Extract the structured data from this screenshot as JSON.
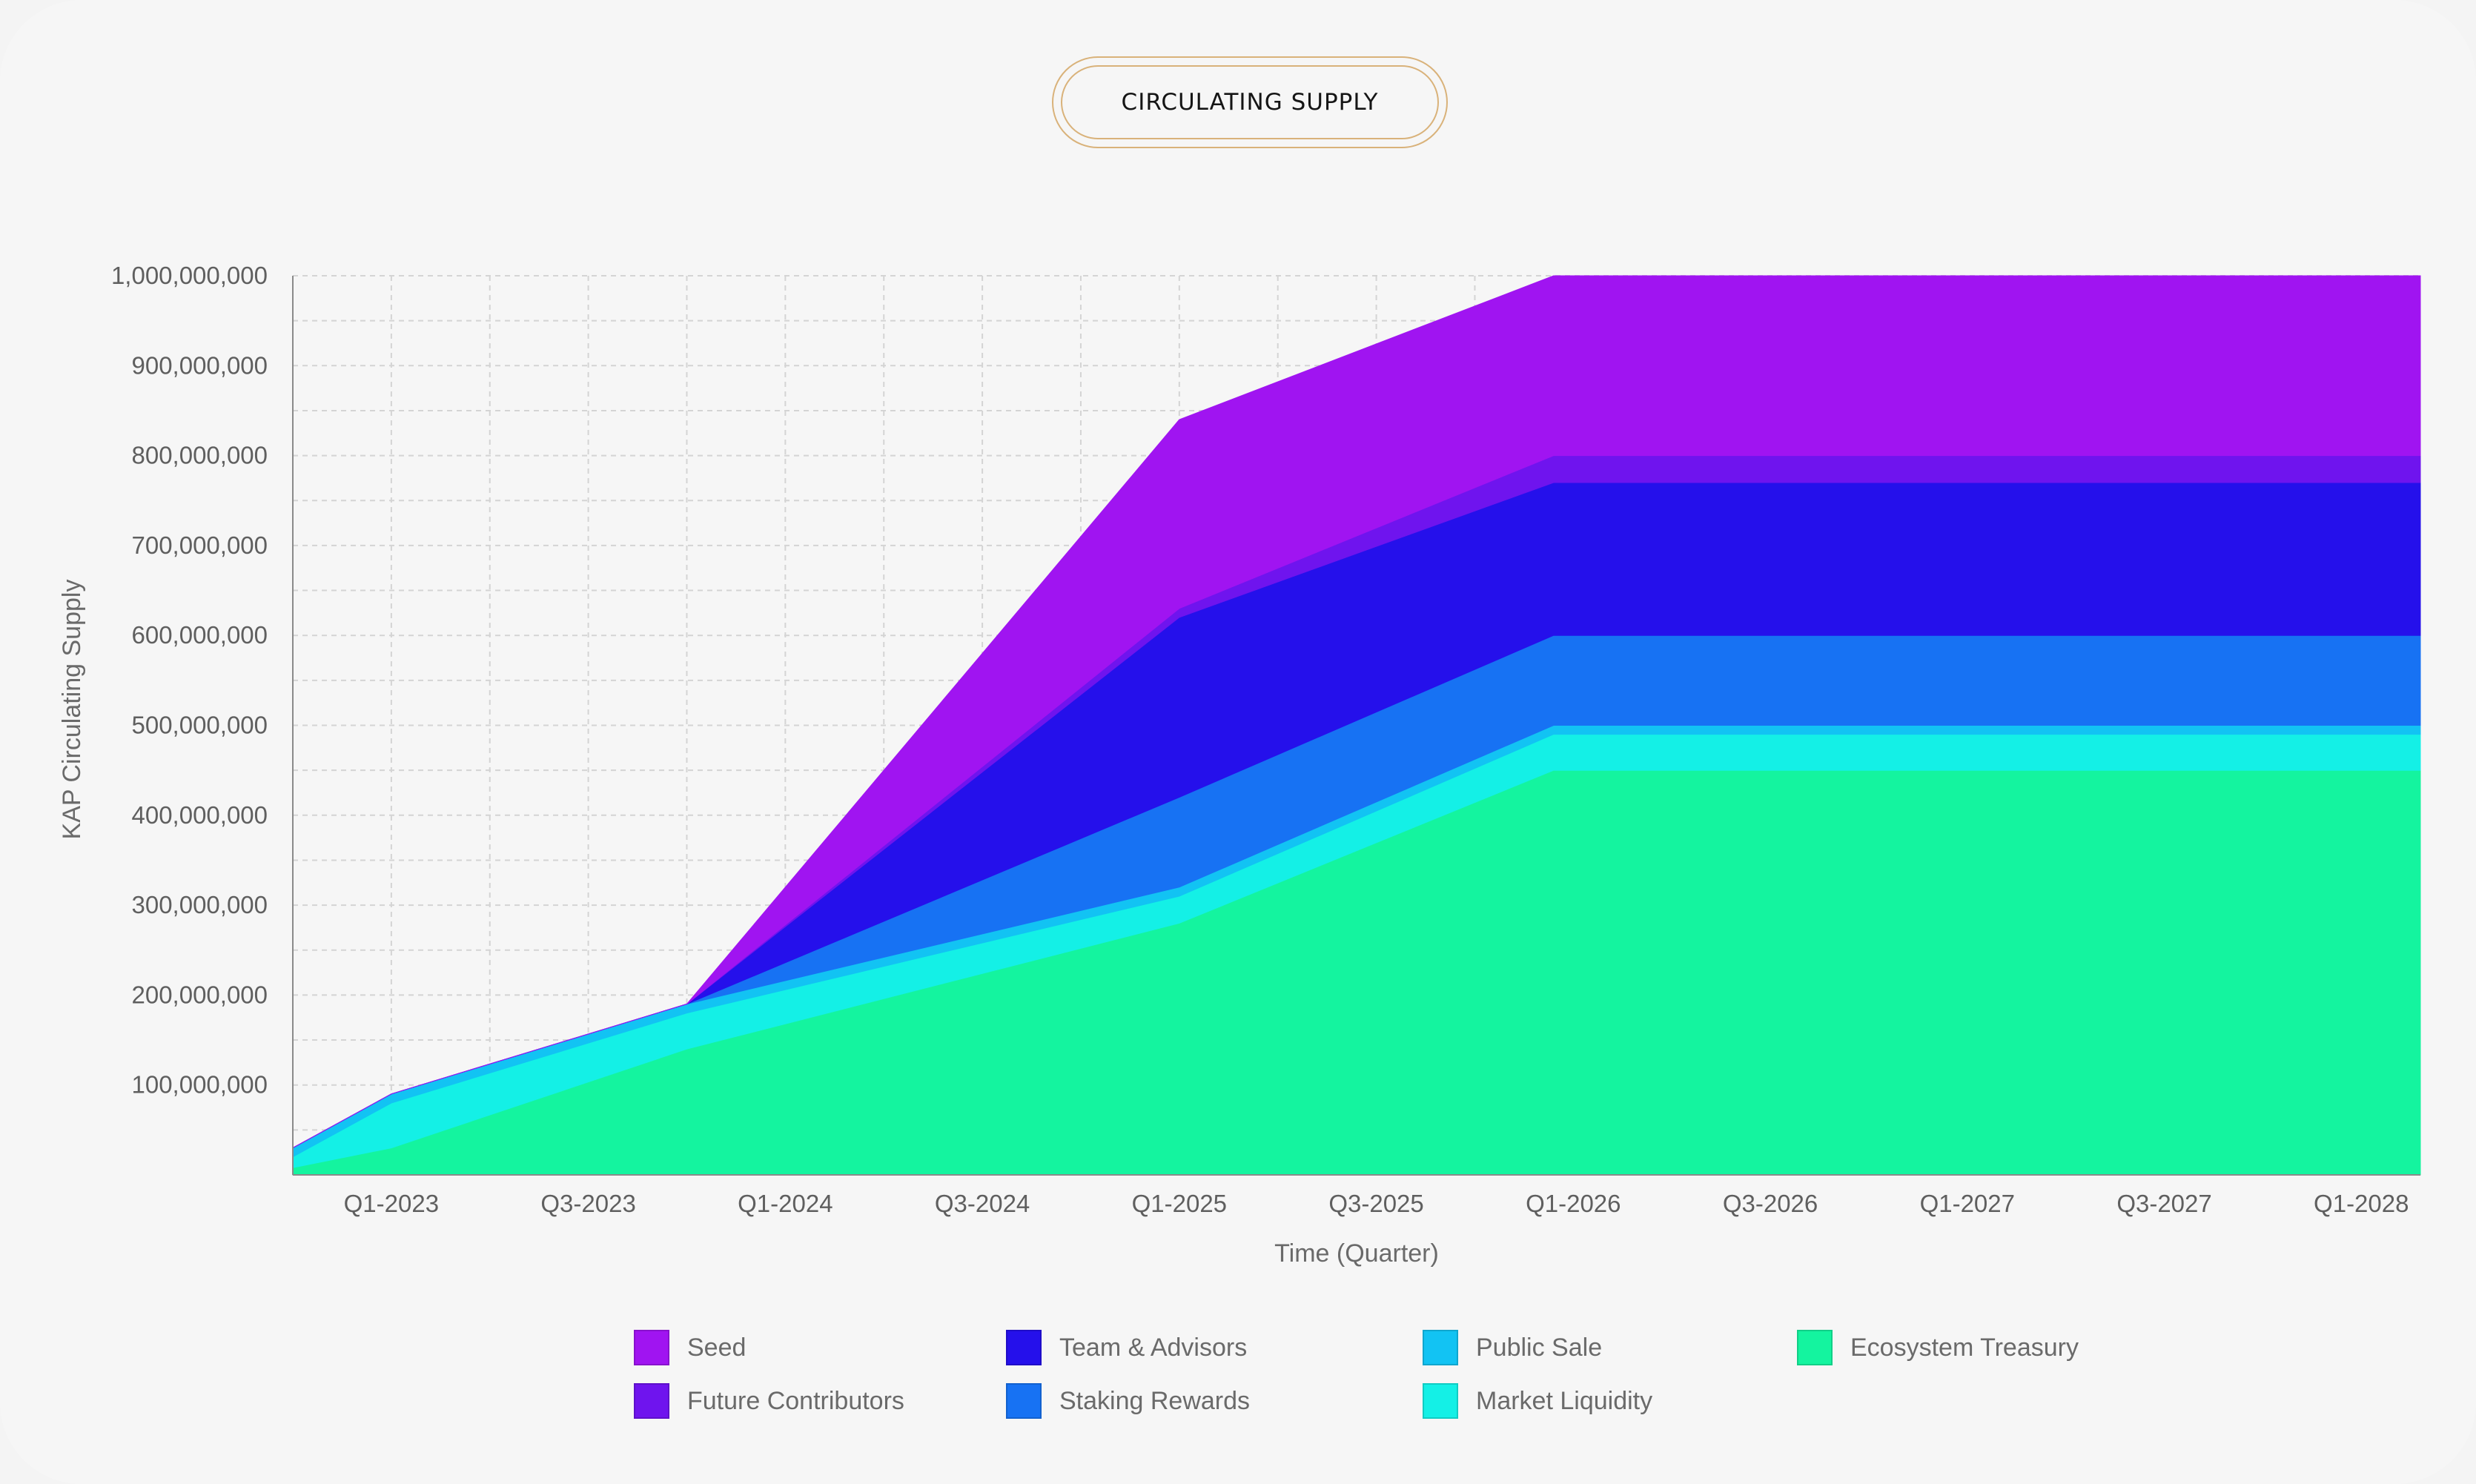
{
  "title": "CIRCULATING SUPPLY",
  "chart_data": {
    "type": "area",
    "stacked": true,
    "xlabel": "Time (Quarter)",
    "ylabel": "KAP Circulating Supply",
    "ylim": [
      0,
      1000000000
    ],
    "y_ticks": [
      "100,000,000",
      "200,000,000",
      "300,000,000",
      "400,000,000",
      "500,000,000",
      "600,000,000",
      "700,000,000",
      "800,000,000",
      "900,000,000",
      "1,000,000,000"
    ],
    "x_tick_labels": [
      "Q1-2023",
      "Q3-2023",
      "Q1-2024",
      "Q3-2024",
      "Q1-2025",
      "Q3-2025",
      "Q1-2026",
      "Q3-2026",
      "Q1-2027",
      "Q3-2027",
      "Q1-2028"
    ],
    "x_range": [
      -0.5,
      10.3
    ],
    "grid": true,
    "legend_position": "bottom",
    "x": [
      -0.5,
      0,
      1.5,
      4,
      5.9,
      6.0,
      7.9,
      8.0,
      10.3
    ],
    "series": [
      {
        "name": "Ecosystem Treasury",
        "color": "#14f49f",
        "values": [
          8000000,
          30000000,
          140000000,
          280000000,
          450000000,
          450000000,
          450000000,
          450000000,
          450000000
        ]
      },
      {
        "name": "Market Liquidity",
        "color": "#14f0e6",
        "values": [
          12000000,
          50000000,
          40000000,
          30000000,
          40000000,
          40000000,
          40000000,
          40000000,
          40000000
        ]
      },
      {
        "name": "Public Sale",
        "color": "#12c3f3",
        "values": [
          10000000,
          10000000,
          10000000,
          10000000,
          10000000,
          10000000,
          10000000,
          10000000,
          10000000
        ]
      },
      {
        "name": "Staking Rewards",
        "color": "#1772f3",
        "values": [
          0,
          0,
          0,
          100000000,
          100000000,
          100000000,
          100000000,
          100000000,
          100000000
        ]
      },
      {
        "name": "Team & Advisors",
        "color": "#2510eb",
        "values": [
          0,
          0,
          0,
          200000000,
          170000000,
          170000000,
          170000000,
          170000000,
          170000000
        ]
      },
      {
        "name": "Future Contributors",
        "color": "#6f14ee",
        "values": [
          0,
          0,
          0,
          10000000,
          30000000,
          30000000,
          30000000,
          30000000,
          30000000
        ]
      },
      {
        "name": "Seed",
        "color": "#a014f1",
        "values": [
          0,
          0,
          0,
          210000000,
          200000000,
          200000000,
          200000000,
          200000000,
          200000000
        ]
      }
    ]
  },
  "legend": [
    {
      "label": "Seed",
      "color": "#a014f1"
    },
    {
      "label": "Future Contributors",
      "color": "#6f14ee"
    },
    {
      "label": "Team & Advisors",
      "color": "#2510eb"
    },
    {
      "label": "Staking Rewards",
      "color": "#1772f3"
    },
    {
      "label": "Public Sale",
      "color": "#12c3f3"
    },
    {
      "label": "Market Liquidity",
      "color": "#14f0e6"
    },
    {
      "label": "Ecosystem Treasury",
      "color": "#14f49f"
    }
  ]
}
